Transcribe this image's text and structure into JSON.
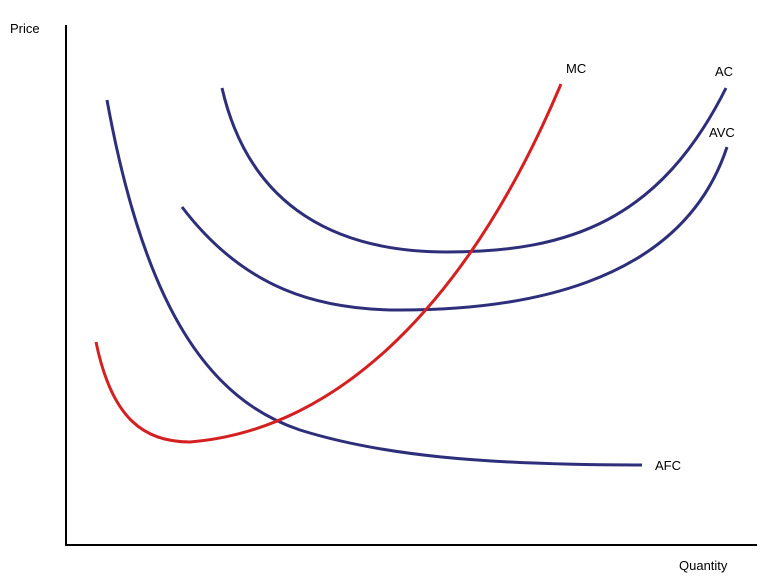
{
  "axes": {
    "y_label": "Price",
    "x_label": "Quantity"
  },
  "curves": [
    {
      "id": "afc",
      "label": "AFC",
      "color": "#2e2f7a"
    },
    {
      "id": "ac",
      "label": "AC",
      "color": "#2e2f7a"
    },
    {
      "id": "avc",
      "label": "AVC",
      "color": "#2e2f7a"
    },
    {
      "id": "mc",
      "label": "MC",
      "color": "#d42021"
    }
  ],
  "colors": {
    "axis": "#000000",
    "cost_curve": "#2e2f7a",
    "marginal_curve": "#d42021"
  }
}
